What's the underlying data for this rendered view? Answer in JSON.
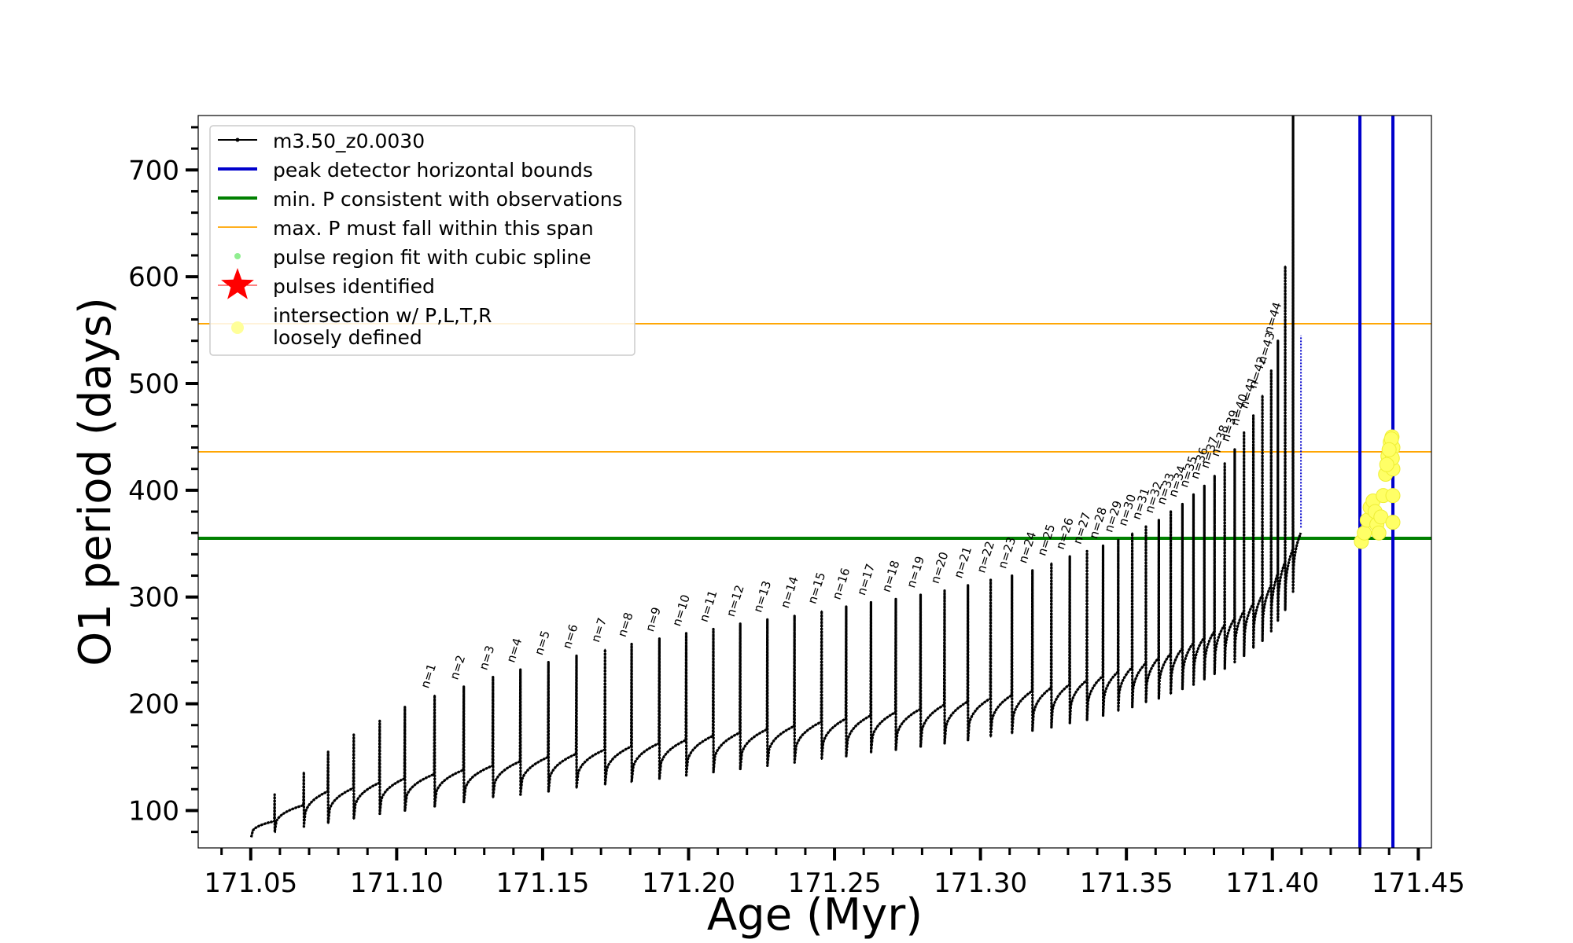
{
  "chart_data": {
    "type": "line",
    "title": "",
    "xlabel": "Age (Myr)",
    "ylabel": "O1 period (days)",
    "xlim": [
      171.032,
      171.4545
    ],
    "ylim": [
      65,
      751
    ],
    "x_ticks": [
      171.05,
      171.1,
      171.15,
      171.2,
      171.25,
      171.3,
      171.35,
      171.4,
      171.45
    ],
    "x_tick_labels": [
      "171.05",
      "171.10",
      "171.15",
      "171.20",
      "171.25",
      "171.30",
      "171.35",
      "171.40",
      "171.45"
    ],
    "y_ticks": [
      100,
      200,
      300,
      400,
      500,
      600,
      700
    ],
    "y_tick_labels": [
      "100",
      "200",
      "300",
      "400",
      "500",
      "600",
      "700"
    ],
    "y_minor_step": 20,
    "x_minor_step": 0.01,
    "grid": false,
    "legend_position": "top-left",
    "legend": [
      {
        "label": "m3.50_z0.0030",
        "style": "line-dot",
        "color": "#000000"
      },
      {
        "label": "peak detector horizontal bounds",
        "style": "line",
        "color": "#0000cc"
      },
      {
        "label": "min. P consistent with observations",
        "style": "line",
        "color": "#008000"
      },
      {
        "label": "max. P must fall within this span",
        "style": "thin-line",
        "color": "#ffa500"
      },
      {
        "label": "pulse region fit with cubic spline",
        "style": "dot",
        "color": "#90ee90"
      },
      {
        "label": "pulses identified",
        "style": "star",
        "color": "#ff0000"
      },
      {
        "label": "intersection w/ P,L,T,R\nloosely defined",
        "style": "circle",
        "color": "#ffff99"
      }
    ],
    "series": [
      {
        "name": "m3.50_z0.0030",
        "color": "#000000",
        "pulses": [
          {
            "x": 171.0502,
            "base": 75,
            "end": 90
          },
          {
            "x": 171.0582,
            "base": 80,
            "end": 105,
            "peak": 115
          },
          {
            "x": 171.0682,
            "base": 85,
            "end": 118,
            "peak": 136
          },
          {
            "x": 171.0765,
            "base": 88,
            "end": 121,
            "peak": 155
          },
          {
            "x": 171.0853,
            "base": 92,
            "end": 126,
            "peak": 171
          },
          {
            "x": 171.0942,
            "base": 97,
            "end": 130,
            "peak": 184
          },
          {
            "x": 171.1028,
            "base": 100,
            "end": 134,
            "peak": 197
          },
          {
            "x": 171.113,
            "base": 104,
            "end": 138,
            "peak": 208,
            "label": "n=1"
          },
          {
            "x": 171.123,
            "base": 108,
            "end": 142,
            "peak": 216,
            "label": "n=2"
          },
          {
            "x": 171.133,
            "base": 112,
            "end": 146,
            "peak": 225,
            "label": "n=3"
          },
          {
            "x": 171.1424,
            "base": 115,
            "end": 150,
            "peak": 232,
            "label": "n=4"
          },
          {
            "x": 171.152,
            "base": 118,
            "end": 153,
            "peak": 239,
            "label": "n=5"
          },
          {
            "x": 171.1616,
            "base": 121,
            "end": 157,
            "peak": 245,
            "label": "n=6"
          },
          {
            "x": 171.1714,
            "base": 124,
            "end": 160,
            "peak": 251,
            "label": "n=7"
          },
          {
            "x": 171.1805,
            "base": 127,
            "end": 163,
            "peak": 256,
            "label": "n=8"
          },
          {
            "x": 171.19,
            "base": 130,
            "end": 166,
            "peak": 261,
            "label": "n=9"
          },
          {
            "x": 171.1992,
            "base": 133,
            "end": 170,
            "peak": 266,
            "label": "n=10"
          },
          {
            "x": 171.2085,
            "base": 136,
            "end": 173,
            "peak": 270,
            "label": "n=11"
          },
          {
            "x": 171.2177,
            "base": 139,
            "end": 176,
            "peak": 275,
            "label": "n=12"
          },
          {
            "x": 171.227,
            "base": 142,
            "end": 179,
            "peak": 279,
            "label": "n=13"
          },
          {
            "x": 171.2363,
            "base": 145,
            "end": 183,
            "peak": 283,
            "label": "n=14"
          },
          {
            "x": 171.2456,
            "base": 148,
            "end": 186,
            "peak": 287,
            "label": "n=15"
          },
          {
            "x": 171.254,
            "base": 151,
            "end": 189,
            "peak": 291,
            "label": "n=16"
          },
          {
            "x": 171.2625,
            "base": 154,
            "end": 192,
            "peak": 295,
            "label": "n=17"
          },
          {
            "x": 171.271,
            "base": 157,
            "end": 195,
            "peak": 298,
            "label": "n=18"
          },
          {
            "x": 171.2795,
            "base": 160,
            "end": 199,
            "peak": 302,
            "label": "n=19"
          },
          {
            "x": 171.2877,
            "base": 163,
            "end": 202,
            "peak": 306,
            "label": "n=20"
          },
          {
            "x": 171.2957,
            "base": 166,
            "end": 205,
            "peak": 311,
            "label": "n=21"
          },
          {
            "x": 171.3035,
            "base": 169,
            "end": 208,
            "peak": 316,
            "label": "n=22"
          },
          {
            "x": 171.3108,
            "base": 172,
            "end": 212,
            "peak": 320,
            "label": "n=23"
          },
          {
            "x": 171.3178,
            "base": 175,
            "end": 215,
            "peak": 325,
            "label": "n=24"
          },
          {
            "x": 171.3243,
            "base": 178,
            "end": 218,
            "peak": 332,
            "label": "n=25"
          },
          {
            "x": 171.3306,
            "base": 182,
            "end": 222,
            "peak": 338,
            "label": "n=26"
          },
          {
            "x": 171.3365,
            "base": 185,
            "end": 226,
            "peak": 343,
            "label": "n=27"
          },
          {
            "x": 171.342,
            "base": 189,
            "end": 230,
            "peak": 348,
            "label": "n=28"
          },
          {
            "x": 171.3472,
            "base": 193,
            "end": 234,
            "peak": 354,
            "label": "n=29"
          },
          {
            "x": 171.352,
            "base": 197,
            "end": 238,
            "peak": 360,
            "label": "n=30"
          },
          {
            "x": 171.3567,
            "base": 201,
            "end": 243,
            "peak": 366,
            "label": "n=31"
          },
          {
            "x": 171.3611,
            "base": 205,
            "end": 247,
            "peak": 372,
            "label": "n=32"
          },
          {
            "x": 171.3652,
            "base": 209,
            "end": 252,
            "peak": 380,
            "label": "n=33"
          },
          {
            "x": 171.3692,
            "base": 214,
            "end": 257,
            "peak": 387,
            "label": "n=34"
          },
          {
            "x": 171.373,
            "base": 218,
            "end": 262,
            "peak": 396,
            "label": "n=35"
          },
          {
            "x": 171.3767,
            "base": 223,
            "end": 268,
            "peak": 404,
            "label": "n=36"
          },
          {
            "x": 171.3802,
            "base": 228,
            "end": 274,
            "peak": 414,
            "label": "n=37"
          },
          {
            "x": 171.3837,
            "base": 233,
            "end": 280,
            "peak": 425,
            "label": "n=38"
          },
          {
            "x": 171.3871,
            "base": 239,
            "end": 287,
            "peak": 439,
            "label": "n=39"
          },
          {
            "x": 171.3903,
            "base": 245,
            "end": 294,
            "peak": 454,
            "label": "n=40"
          },
          {
            "x": 171.3935,
            "base": 252,
            "end": 302,
            "peak": 470,
            "label": "n=41"
          },
          {
            "x": 171.3966,
            "base": 259,
            "end": 311,
            "peak": 489,
            "label": "n=42"
          },
          {
            "x": 171.3996,
            "base": 268,
            "end": 322,
            "peak": 512,
            "label": "n=43"
          },
          {
            "x": 171.4019,
            "base": 278,
            "end": 333,
            "peak": 540,
            "label": "n=44"
          },
          {
            "x": 171.4044,
            "base": 288,
            "end": 345,
            "peak": 610
          },
          {
            "x": 171.4071,
            "base": 305,
            "end": 360,
            "peak": 751
          }
        ]
      }
    ],
    "extra_points": {
      "x": 171.4098,
      "y_range": [
        365,
        545
      ]
    },
    "vlines": [
      {
        "x": 171.43,
        "color": "#0000cc",
        "role": "peak detector horizontal bounds"
      },
      {
        "x": 171.4413,
        "color": "#0000cc",
        "role": "peak detector horizontal bounds"
      }
    ],
    "hlines": [
      {
        "y": 355,
        "color": "#008000",
        "role": "min. P consistent with observations"
      },
      {
        "y": 436,
        "color": "#ffa500",
        "role": "max. P must fall within this span"
      },
      {
        "y": 556,
        "color": "#ffa500",
        "role": "max. P must fall within this span"
      }
    ],
    "yellow_points": [
      [
        171.4305,
        352
      ],
      [
        171.4315,
        360
      ],
      [
        171.4325,
        372
      ],
      [
        171.4335,
        384
      ],
      [
        171.4345,
        390
      ],
      [
        171.4352,
        380
      ],
      [
        171.4358,
        368
      ],
      [
        171.4365,
        360
      ],
      [
        171.4372,
        375
      ],
      [
        171.438,
        395
      ],
      [
        171.4388,
        415
      ],
      [
        171.4396,
        432
      ],
      [
        171.4404,
        445
      ],
      [
        171.441,
        450
      ],
      [
        171.4413,
        440
      ],
      [
        171.4413,
        420
      ],
      [
        171.4413,
        395
      ],
      [
        171.4413,
        370
      ],
      [
        171.4411,
        430
      ],
      [
        171.4408,
        448
      ],
      [
        171.44,
        438
      ],
      [
        171.4392,
        424
      ]
    ]
  }
}
